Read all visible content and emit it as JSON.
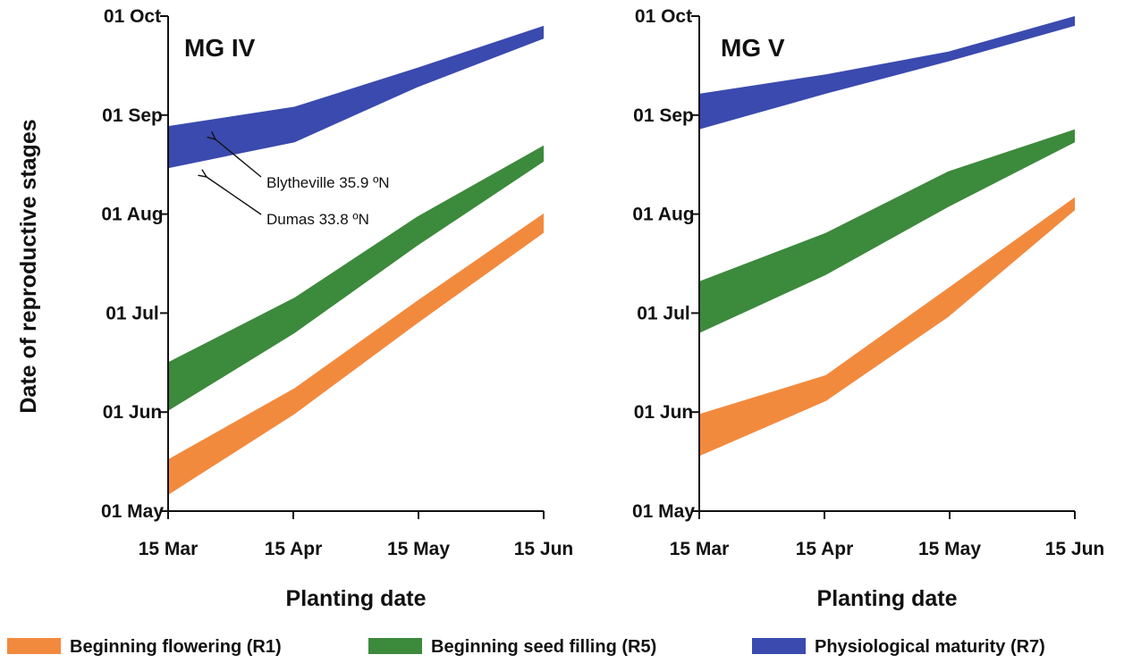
{
  "chart_data": {
    "type": "area",
    "ylabel": "Date of reproductive stages",
    "y_ticks": [
      "01 May",
      "01 Jun",
      "01 Jul",
      "01 Aug",
      "01 Sep",
      "01 Oct"
    ],
    "y_range": [
      "2013-05-01",
      "2013-10-01"
    ],
    "x_ticks": [
      "15 Mar",
      "15 Apr",
      "15 May",
      "15 Jun"
    ],
    "x_range": [
      "2013-03-15",
      "2013-06-15"
    ],
    "legend_placement": "bottom",
    "legend": [
      {
        "label": "Beginning flowering (R1)",
        "color": "#f28a3e"
      },
      {
        "label": "Beginning seed filling (R5)",
        "color": "#3c8a3c"
      },
      {
        "label": "Physiological maturity (R7)",
        "color": "#3a4aae"
      }
    ],
    "panels": [
      {
        "title": "MG IV",
        "xlabel": "Planting date",
        "x": [
          "2013-03-15",
          "2013-04-15",
          "2013-05-15",
          "2013-06-15"
        ],
        "series": [
          {
            "name": "Beginning flowering (R1)",
            "low": [
              "2013-05-06",
              "2013-05-31",
              "2013-06-28",
              "2013-07-26"
            ],
            "high": [
              "2013-05-17",
              "2013-06-08",
              "2013-07-05",
              "2013-08-01"
            ]
          },
          {
            "name": "Beginning seed filling (R5)",
            "low": [
              "2013-06-01",
              "2013-06-25",
              "2013-07-22",
              "2013-08-17"
            ],
            "high": [
              "2013-06-16",
              "2013-07-06",
              "2013-07-31",
              "2013-08-22"
            ]
          },
          {
            "name": "Physiological maturity (R7)",
            "low": [
              "2013-08-15",
              "2013-08-23",
              "2013-09-09",
              "2013-09-24"
            ],
            "high": [
              "2013-08-28",
              "2013-09-03",
              "2013-09-15",
              "2013-09-28"
            ]
          }
        ],
        "annotations": [
          {
            "text": "Blytheville 35.9 ºN"
          },
          {
            "text": "Dumas 33.8 ºN"
          }
        ]
      },
      {
        "title": "MG V",
        "xlabel": "Planting date",
        "x": [
          "2013-03-15",
          "2013-04-15",
          "2013-05-15",
          "2013-06-15"
        ],
        "series": [
          {
            "name": "Beginning flowering (R1)",
            "low": [
              "2013-05-18",
              "2013-06-04",
              "2013-06-30",
              "2013-08-02"
            ],
            "high": [
              "2013-05-31",
              "2013-06-12",
              "2013-07-09",
              "2013-08-06"
            ]
          },
          {
            "name": "Beginning seed filling (R5)",
            "low": [
              "2013-06-25",
              "2013-07-13",
              "2013-08-03",
              "2013-08-23"
            ],
            "high": [
              "2013-07-11",
              "2013-07-26",
              "2013-08-14",
              "2013-08-27"
            ]
          },
          {
            "name": "Physiological maturity (R7)",
            "low": [
              "2013-08-27",
              "2013-09-07",
              "2013-09-17",
              "2013-09-28"
            ],
            "high": [
              "2013-09-07",
              "2013-09-13",
              "2013-09-20",
              "2013-10-01"
            ]
          }
        ]
      }
    ]
  }
}
